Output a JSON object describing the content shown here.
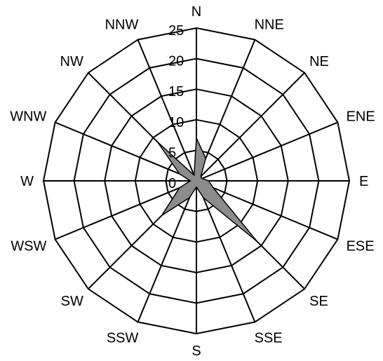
{
  "chart_data": {
    "type": "radar",
    "directions": [
      "N",
      "NNE",
      "NE",
      "ENE",
      "E",
      "ESE",
      "SE",
      "SSE",
      "S",
      "SSW",
      "SW",
      "WSW",
      "W",
      "WNW",
      "NW",
      "NNW"
    ],
    "series": [
      {
        "values": [
          7,
          4,
          1,
          1,
          2,
          3,
          14,
          3,
          1,
          3,
          8,
          3,
          1,
          3,
          9,
          1
        ],
        "fill": "#8c8c8c",
        "stroke": "#000000"
      }
    ],
    "radial_ticks": [
      "0",
      "5",
      "10",
      "15",
      "20",
      "25"
    ],
    "rmax": 25,
    "grid_step": 5,
    "grid_shape": "polygon",
    "grid": true
  }
}
